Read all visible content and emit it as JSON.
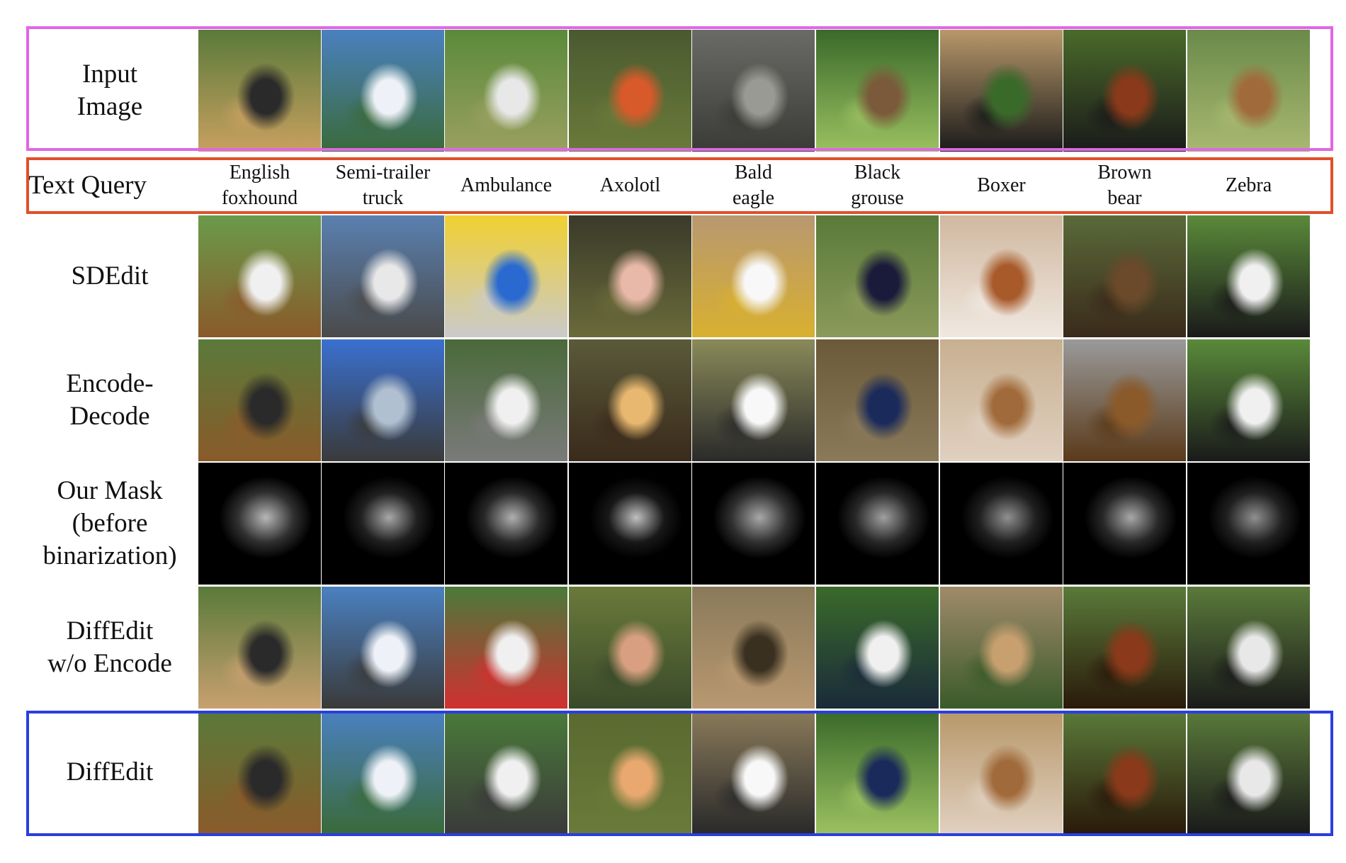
{
  "row_labels": {
    "input": "Input\nImage",
    "text_query": "Text Query",
    "sdedit": "SDEdit",
    "encode_decode": "Encode-\nDecode",
    "mask": "Our Mask\n(before\nbinarization)",
    "diffedit_wo": "DiffEdit\nw/o Encode",
    "diffedit": "DiffEdit"
  },
  "queries": [
    "English\nfoxhound",
    "Semi-trailer\ntruck",
    "Ambulance",
    "Axolotl",
    "Bald\neagle",
    "Black\ngrouse",
    "Boxer",
    "Brown\nbear",
    "Zebra"
  ],
  "colors": {
    "input_frame": "#e066e6",
    "query_frame": "#e0502a",
    "diffedit_frame": "#2a3ee0"
  },
  "cell_colors": {
    "input": [
      [
        "#5a7a3a",
        "#2a2a2a",
        "#c8a060"
      ],
      [
        "#4a80c0",
        "#eef2f8",
        "#3a6a3a"
      ],
      [
        "#5a8a3a",
        "#e8e8e8",
        "#9aa060"
      ],
      [
        "#4a5a30",
        "#d85a2a",
        "#6a7a3a"
      ],
      [
        "#6a6a66",
        "#9a9a94",
        "#3a3a36"
      ],
      [
        "#3a6a2a",
        "#7a5a3a",
        "#9ac060"
      ],
      [
        "#b8986a",
        "#3a6a2a",
        "#1a1a1a"
      ],
      [
        "#4a6a2a",
        "#8a3a1a",
        "#1a1a1a"
      ],
      [
        "#6a8a4a",
        "#a06a3a",
        "#a8b870"
      ]
    ],
    "sdedit": [
      [
        "#6a9a4a",
        "#f0f0f0",
        "#8a5a2a"
      ],
      [
        "#5a80b0",
        "#e8e8e8",
        "#4a4a4a"
      ],
      [
        "#f0d030",
        "#2a6ad0",
        "#cacaca"
      ],
      [
        "#3a3a2a",
        "#e8b8a8",
        "#6a6a3a"
      ],
      [
        "#b89870",
        "#f8f8f8",
        "#d8b030"
      ],
      [
        "#5a7a3a",
        "#1a1a3a",
        "#8a9a5a"
      ],
      [
        "#d0b8a0",
        "#a85a2a",
        "#f0e8e0"
      ],
      [
        "#5a6a3a",
        "#6a4a2a",
        "#3a2a1a"
      ],
      [
        "#5a8a3a",
        "#f0f0f0",
        "#1a1a1a"
      ]
    ],
    "encode": [
      [
        "#5a7a3a",
        "#2a2a2a",
        "#8a5a2a"
      ],
      [
        "#3a70d0",
        "#b0c0d0",
        "#3a3a3a"
      ],
      [
        "#4a6a3a",
        "#f0f0f0",
        "#7a7a7a"
      ],
      [
        "#5a5a3a",
        "#e8b870",
        "#3a2a1a"
      ],
      [
        "#8a8a5a",
        "#f8f8f8",
        "#2a2a2a"
      ],
      [
        "#6a5a3a",
        "#1a2a5a",
        "#8a7a5a"
      ],
      [
        "#c8b090",
        "#a06a3a",
        "#e0d0c0"
      ],
      [
        "#9a9a9a",
        "#8a5a2a",
        "#5a3a1a"
      ],
      [
        "#5a8a3a",
        "#f0f0f0",
        "#1a1a1a"
      ]
    ],
    "mask": [
      [
        "#000000",
        "#b8b8b8",
        "#303030"
      ],
      [
        "#000000",
        "#a8a8a8",
        "#202020"
      ],
      [
        "#000000",
        "#b0b0b0",
        "#282828"
      ],
      [
        "#000000",
        "#c0c0c0",
        "#181818"
      ],
      [
        "#000000",
        "#a8a8a8",
        "#303030"
      ],
      [
        "#000000",
        "#a0a0a0",
        "#282828"
      ],
      [
        "#000000",
        "#909090",
        "#202020"
      ],
      [
        "#000000",
        "#a8a8a8",
        "#282828"
      ],
      [
        "#000000",
        "#909090",
        "#202020"
      ]
    ],
    "wo": [
      [
        "#5a7a3a",
        "#2a2a2a",
        "#c8a070"
      ],
      [
        "#4a80c0",
        "#eef2f8",
        "#3a3a3a"
      ],
      [
        "#4a7a3a",
        "#f0f0f0",
        "#d03030"
      ],
      [
        "#6a7a3a",
        "#d8a080",
        "#3a4a2a"
      ],
      [
        "#8a7a5a",
        "#3a3020",
        "#b89870"
      ],
      [
        "#3a6a2a",
        "#f0f0f0",
        "#1a2a3a"
      ],
      [
        "#a08a6a",
        "#c8a070",
        "#3a5a2a"
      ],
      [
        "#5a7a3a",
        "#8a3a1a",
        "#2a1a0a"
      ],
      [
        "#5a7a3a",
        "#e8e8e8",
        "#1a1a1a"
      ]
    ],
    "diffedit": [
      [
        "#5a7a3a",
        "#2a2a2a",
        "#8a5a2a"
      ],
      [
        "#4a80c0",
        "#eef2f8",
        "#3a6a3a"
      ],
      [
        "#4a7a3a",
        "#f0f0f0",
        "#3a3a3a"
      ],
      [
        "#5a6a30",
        "#e8a870",
        "#6a7a3a"
      ],
      [
        "#8a7a5a",
        "#f8f8f8",
        "#2a2a2a"
      ],
      [
        "#3a6a2a",
        "#1a2a5a",
        "#9ac060"
      ],
      [
        "#b8986a",
        "#a06a3a",
        "#e0d0c0"
      ],
      [
        "#5a7a3a",
        "#8a3a1a",
        "#2a1a0a"
      ],
      [
        "#5a7a3a",
        "#e8e8e8",
        "#1a1a1a"
      ]
    ]
  }
}
